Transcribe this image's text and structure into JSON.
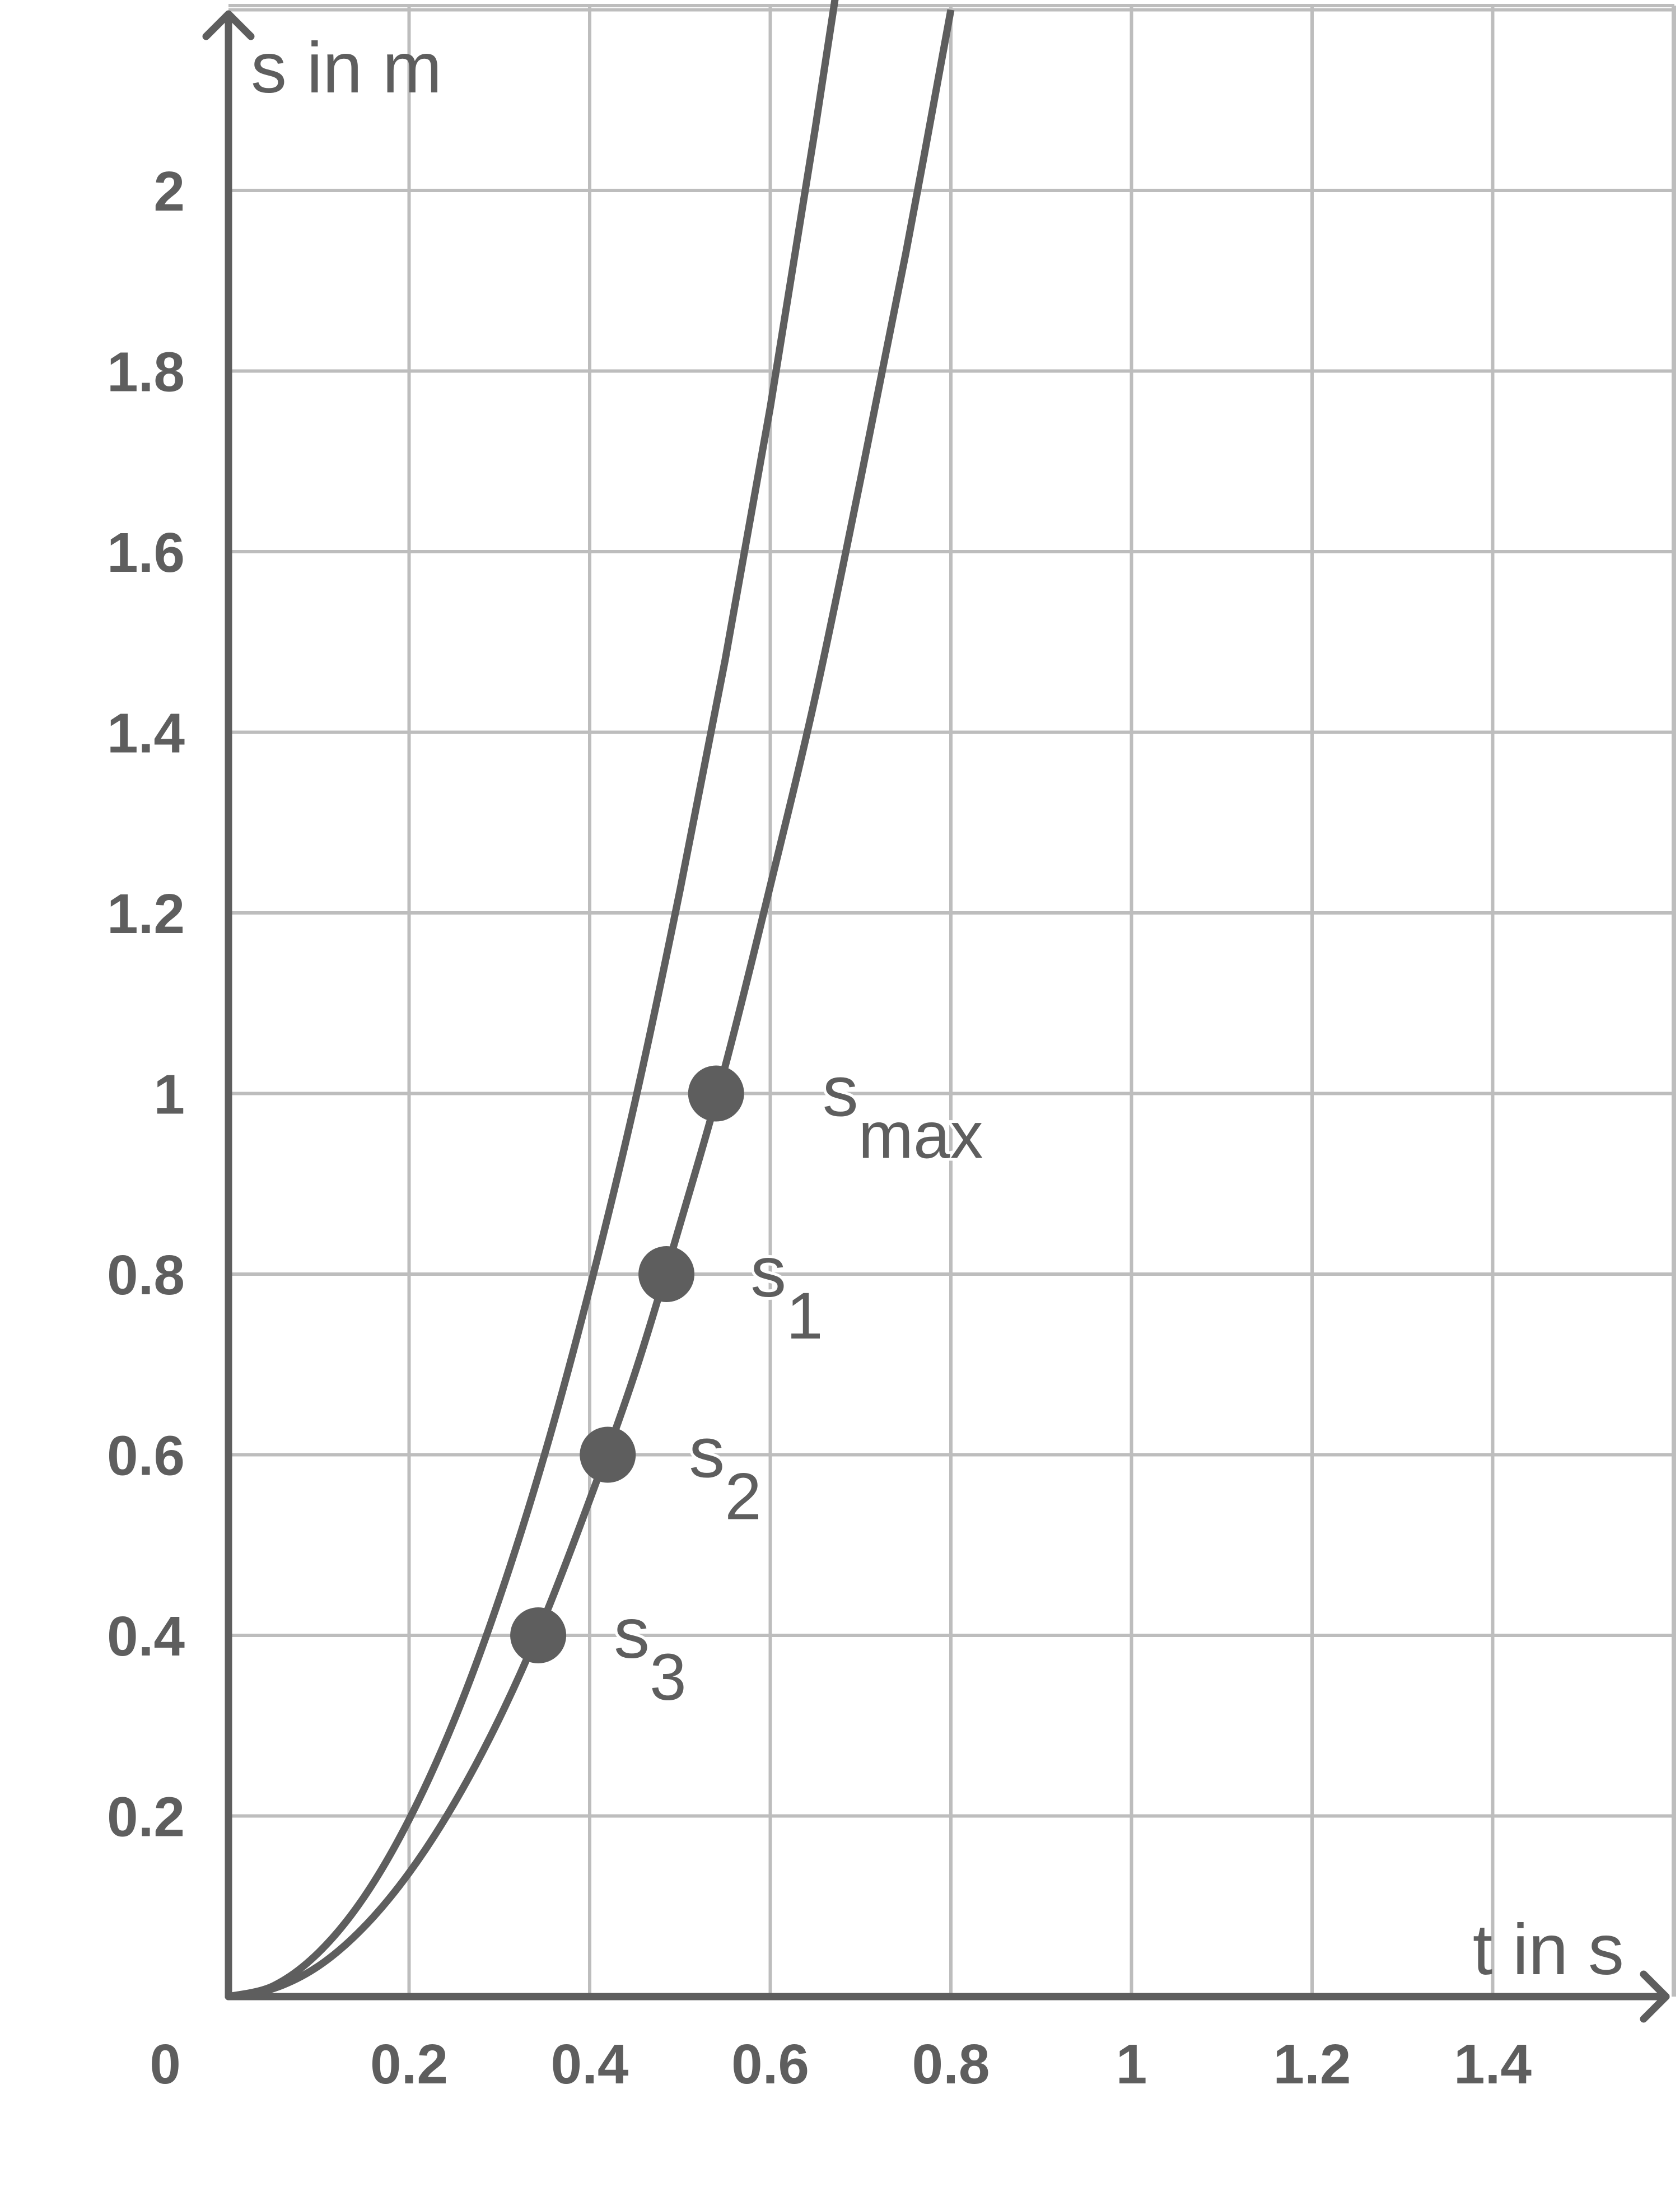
{
  "chart_data": {
    "type": "line",
    "xlabel": "t in s",
    "ylabel": "s in m",
    "xlim": [
      0,
      1.6
    ],
    "ylim": [
      0,
      2.2
    ],
    "grid": true,
    "origin_label": "0",
    "x_ticks": [
      {
        "value": 0.2,
        "label": "0.2"
      },
      {
        "value": 0.4,
        "label": "0.4"
      },
      {
        "value": 0.6,
        "label": "0.6"
      },
      {
        "value": 0.8,
        "label": "0.8"
      },
      {
        "value": 1.0,
        "label": "1"
      },
      {
        "value": 1.2,
        "label": "1.2"
      },
      {
        "value": 1.4,
        "label": "1.4"
      }
    ],
    "y_ticks": [
      {
        "value": 0.2,
        "label": "0.2"
      },
      {
        "value": 0.4,
        "label": "0.4"
      },
      {
        "value": 0.6,
        "label": "0.6"
      },
      {
        "value": 0.8,
        "label": "0.8"
      },
      {
        "value": 1.0,
        "label": "1"
      },
      {
        "value": 1.2,
        "label": "1.2"
      },
      {
        "value": 1.4,
        "label": "1.4"
      },
      {
        "value": 1.6,
        "label": "1.6"
      },
      {
        "value": 1.8,
        "label": "1.8"
      },
      {
        "value": 2.0,
        "label": "2"
      }
    ],
    "series": [
      {
        "x": [
          0,
          0.05,
          0.1,
          0.15,
          0.2,
          0.25,
          0.3,
          0.35,
          0.4,
          0.45,
          0.5,
          0.55,
          0.6,
          0.65,
          0.7
        ],
        "y": [
          0,
          0.012,
          0.049,
          0.11,
          0.196,
          0.306,
          0.441,
          0.6,
          0.784,
          0.99,
          1.225,
          1.48,
          1.76,
          2.07,
          2.4
        ],
        "color": "#5e5e5e"
      },
      {
        "x": [
          0,
          0.05,
          0.1,
          0.15,
          0.2,
          0.25,
          0.3,
          0.35,
          0.4,
          0.45,
          0.5,
          0.55,
          0.6,
          0.65,
          0.7,
          0.75,
          0.8
        ],
        "y": [
          0,
          0.009,
          0.034,
          0.077,
          0.137,
          0.214,
          0.308,
          0.42,
          0.55,
          0.69,
          0.855,
          1.03,
          1.23,
          1.44,
          1.68,
          1.93,
          2.2
        ],
        "color": "#5e5e5e"
      }
    ],
    "points": [
      {
        "x": 0.54,
        "y": 1.0,
        "base": "s",
        "sub": "max"
      },
      {
        "x": 0.485,
        "y": 0.8,
        "base": "s",
        "sub": "1"
      },
      {
        "x": 0.42,
        "y": 0.6,
        "base": "s",
        "sub": "2"
      },
      {
        "x": 0.343,
        "y": 0.4,
        "base": "s",
        "sub": "3"
      }
    ]
  }
}
